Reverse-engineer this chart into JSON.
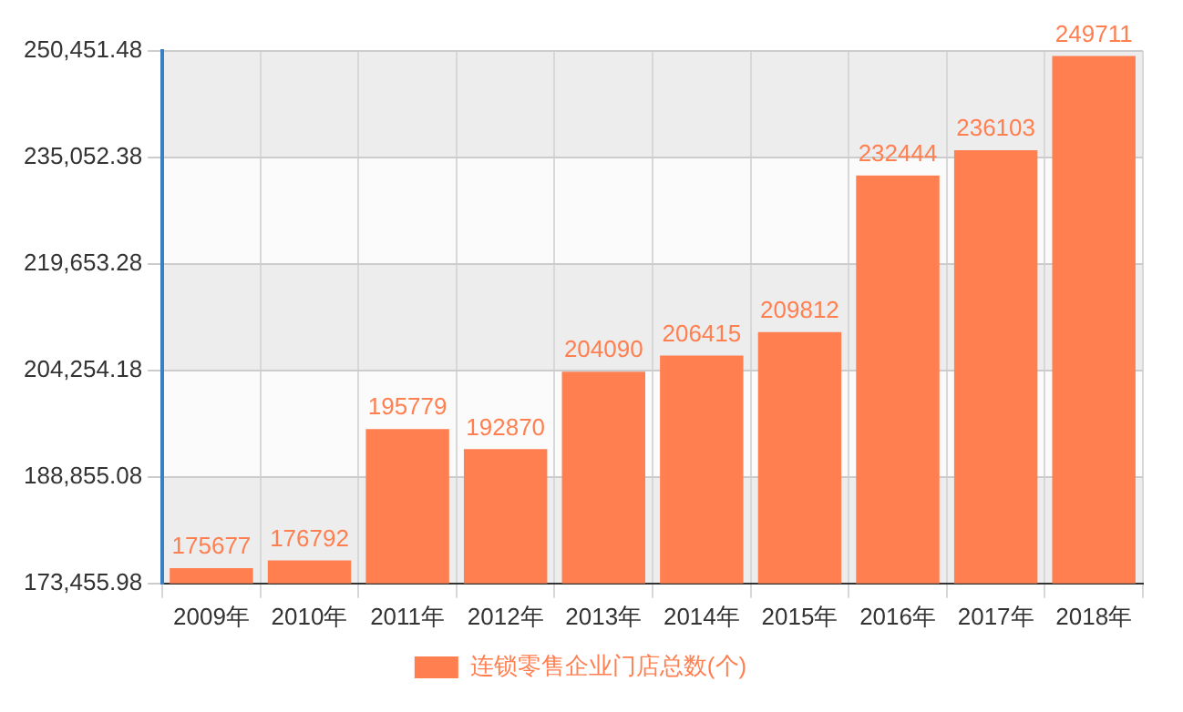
{
  "chart_data": {
    "type": "bar",
    "categories": [
      "2009年",
      "2010年",
      "2011年",
      "2012年",
      "2013年",
      "2014年",
      "2015年",
      "2016年",
      "2017年",
      "2018年"
    ],
    "series": [
      {
        "name": "连锁零售企业门店总数(个)",
        "color": "#ff7f50",
        "values": [
          175677,
          176792,
          195779,
          192870,
          204090,
          206415,
          209812,
          232444,
          236103,
          249711
        ]
      }
    ],
    "ylim": [
      173455.98,
      250451.48
    ],
    "yticks": [
      {
        "value": 173455.98,
        "label": "173,455.98"
      },
      {
        "value": 188855.08,
        "label": "188,855.08"
      },
      {
        "value": 204254.18,
        "label": "204,254.18"
      },
      {
        "value": 219653.28,
        "label": "219,653.28"
      },
      {
        "value": 235052.38,
        "label": "235,052.38"
      },
      {
        "value": 250451.48,
        "label": "250,451.48"
      }
    ],
    "grid": true,
    "legend": "bottom",
    "data_labels": true
  }
}
